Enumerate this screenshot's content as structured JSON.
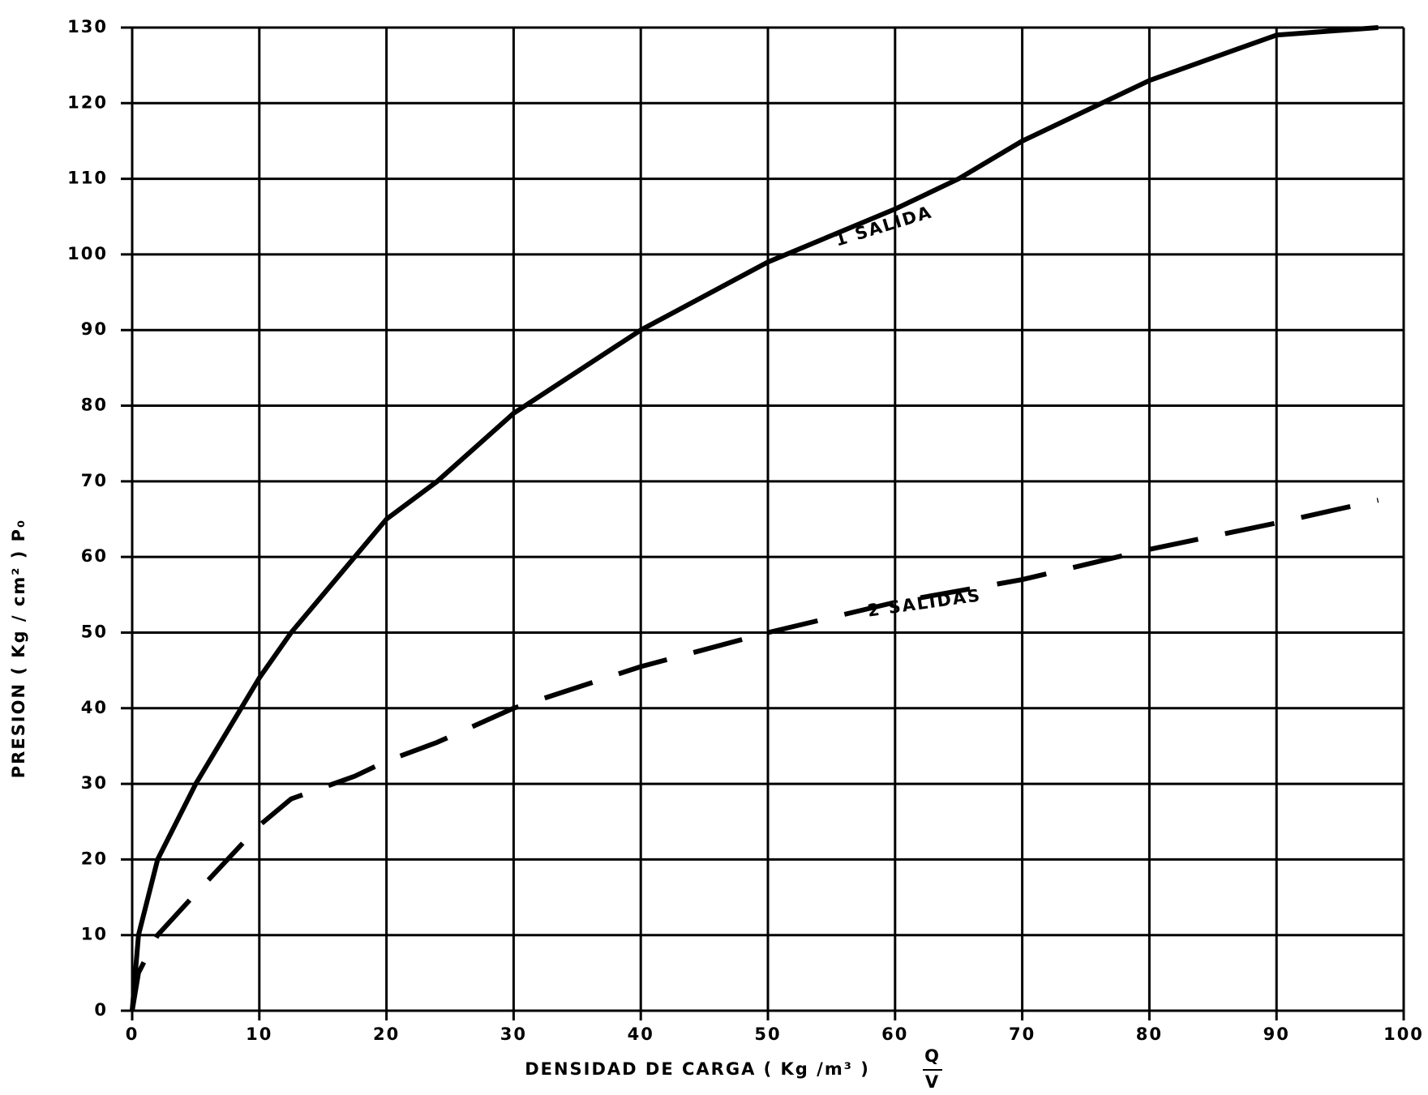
{
  "chart_data": {
    "type": "line",
    "x_label": "DENSIDAD DE CARGA  ( Kg /m³ )",
    "x_label_fraction": [
      "Q",
      "V"
    ],
    "y_label": "PRESION  ( Kg / cm² )  P₀",
    "x": [
      0,
      0.5,
      2,
      5,
      10,
      12.5,
      17.5,
      20,
      24,
      30,
      40,
      50,
      60,
      65,
      70,
      80,
      90,
      98
    ],
    "series": [
      {
        "name": "1 SALIDA",
        "color": "#000000",
        "dashed": false,
        "values": [
          0,
          10,
          20,
          30,
          44,
          50,
          60,
          65,
          70,
          79,
          90,
          99,
          106,
          110,
          115,
          123,
          129,
          130
        ]
      },
      {
        "name": "2 SALIDAS",
        "color": "#000000",
        "dashed": true,
        "values": [
          0,
          5,
          10,
          15.5,
          24.5,
          28,
          31,
          33,
          35.5,
          40,
          45.5,
          50,
          54,
          55.5,
          57,
          61,
          64.5,
          67.5
        ]
      }
    ],
    "xlim": [
      0,
      100
    ],
    "ylim": [
      0,
      130
    ],
    "xticks": [
      0,
      10,
      20,
      30,
      40,
      50,
      60,
      70,
      80,
      90,
      100
    ],
    "yticks": [
      0,
      10,
      20,
      30,
      40,
      50,
      60,
      70,
      80,
      90,
      100,
      110,
      120,
      130
    ],
    "grid": true
  }
}
